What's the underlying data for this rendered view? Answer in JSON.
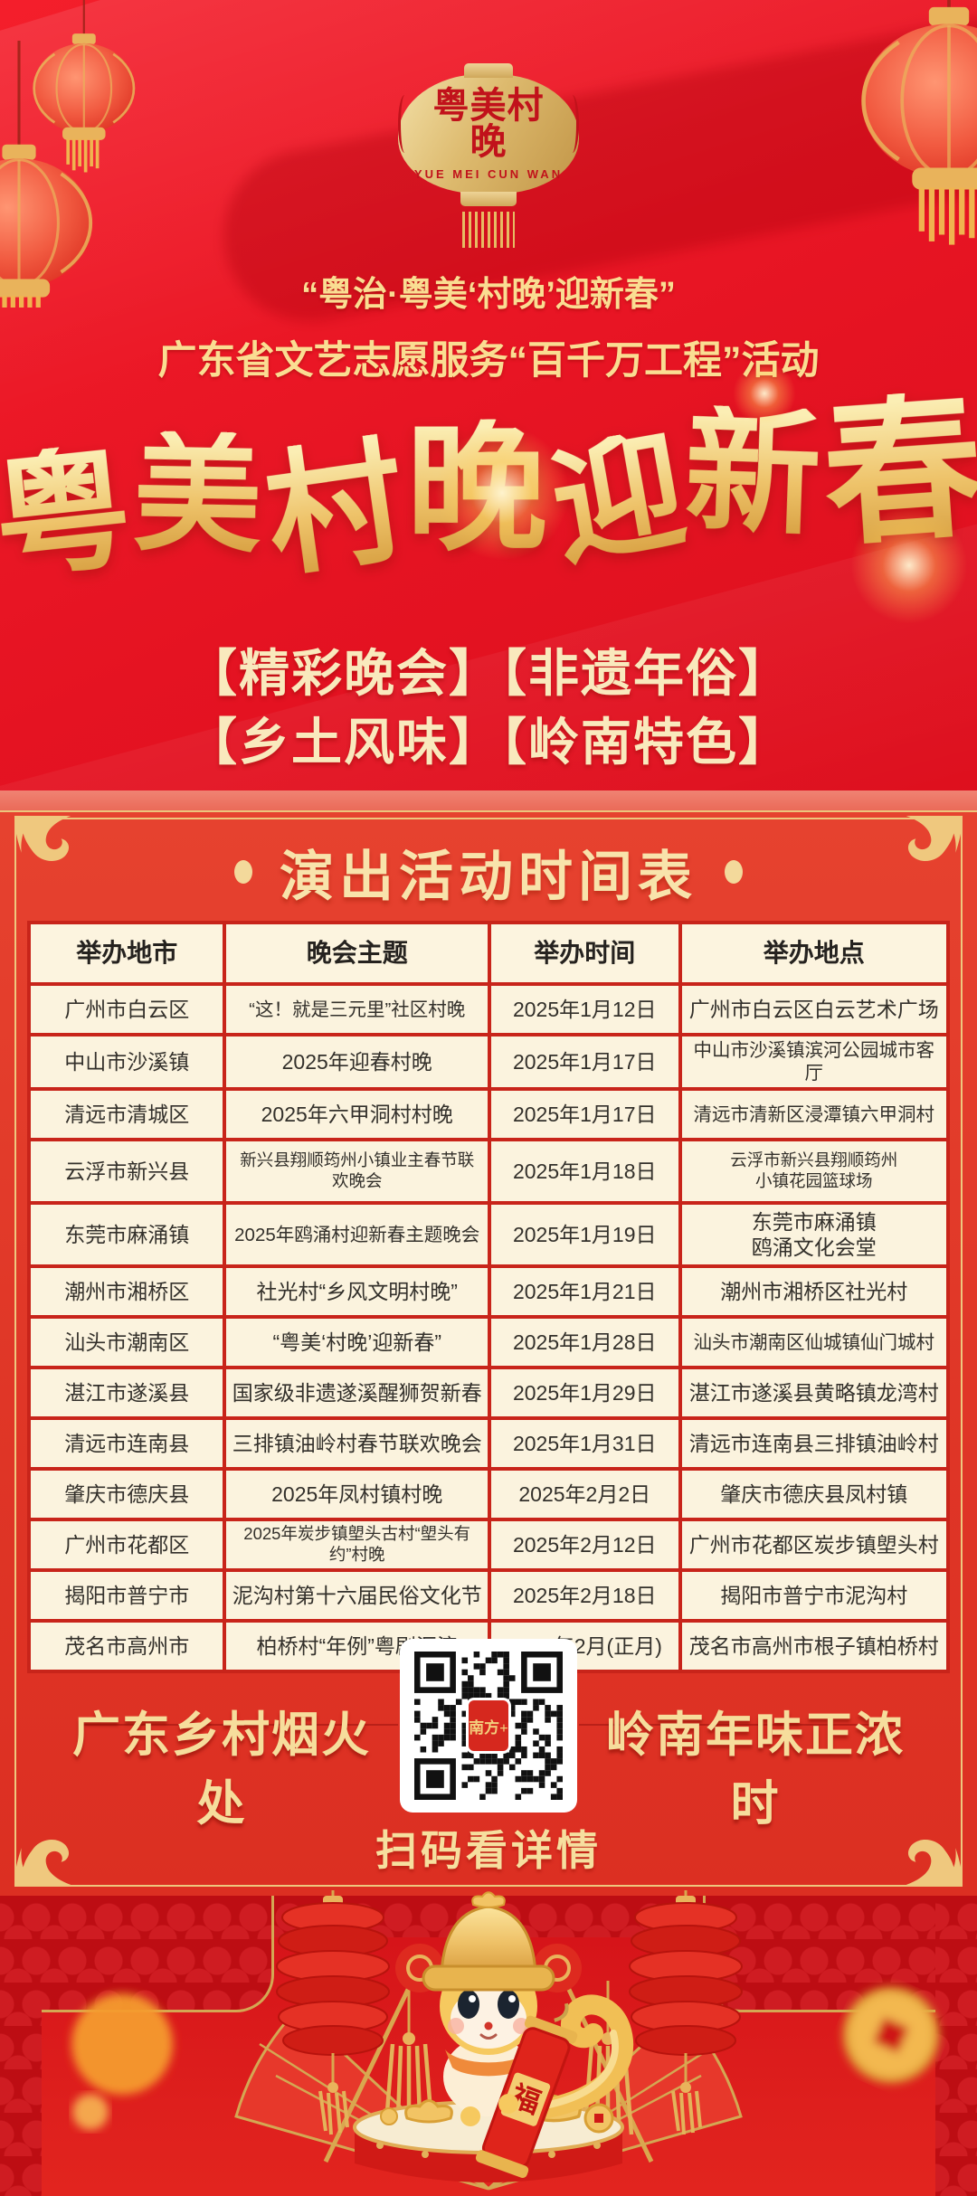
{
  "poster": {
    "logo": {
      "name": "粤美村晚",
      "latin": "YUE MEI CUN WAN"
    },
    "kicker_line1": "“粤治·粤美‘村晚’迎新春”",
    "kicker_line2": "广东省文艺志愿服务“百千万工程”活动",
    "main_title": "粤美村晚迎新春",
    "tags_line1": "【精彩晚会】【非遗年俗】",
    "tags_line2": "【乡土风味】【岭南特色】"
  },
  "schedule": {
    "decor_dot_left": "",
    "decor_dot_right": "",
    "title": "演出活动时间表",
    "columns": [
      "举办地市",
      "晚会主题",
      "举办时间",
      "举办地点"
    ],
    "rows": [
      {
        "city": "广州市白云区",
        "theme": "“这！就是三元里”社区村晚",
        "date": "2025年1月12日",
        "venue": "广州市白云区白云艺术广场"
      },
      {
        "city": "中山市沙溪镇",
        "theme": "2025年迎春村晚",
        "date": "2025年1月17日",
        "venue": "中山市沙溪镇滨河公园城市客厅"
      },
      {
        "city": "清远市清城区",
        "theme": "2025年六甲洞村村晚",
        "date": "2025年1月17日",
        "venue": "清远市清新区浸潭镇六甲洞村"
      },
      {
        "city": "云浮市新兴县",
        "theme": "新兴县翔顺筠州小镇业主春节联欢晚会",
        "date": "2025年1月18日",
        "venue": "云浮市新兴县翔顺筠州\n小镇花园篮球场"
      },
      {
        "city": "东莞市麻涌镇",
        "theme": "2025年鸥涌村迎新春主题晚会",
        "date": "2025年1月19日",
        "venue": "东莞市麻涌镇\n鸥涌文化会堂"
      },
      {
        "city": "潮州市湘桥区",
        "theme": "社光村“乡风文明村晚”",
        "date": "2025年1月21日",
        "venue": "潮州市湘桥区社光村"
      },
      {
        "city": "汕头市潮南区",
        "theme": "“粤美‘村晚’迎新春”",
        "date": "2025年1月28日",
        "venue": "汕头市潮南区仙城镇仙门城村"
      },
      {
        "city": "湛江市遂溪县",
        "theme": "国家级非遗遂溪醒狮贺新春",
        "date": "2025年1月29日",
        "venue": "湛江市遂溪县黄略镇龙湾村"
      },
      {
        "city": "清远市连南县",
        "theme": "三排镇油岭村春节联欢晚会",
        "date": "2025年1月31日",
        "venue": "清远市连南县三排镇油岭村"
      },
      {
        "city": "肇庆市德庆县",
        "theme": "2025年凤村镇村晚",
        "date": "2025年2月2日",
        "venue": "肇庆市德庆县凤村镇"
      },
      {
        "city": "广州市花都区",
        "theme": "2025年炭步镇塱头古村“塱头有约”村晚",
        "date": "2025年2月12日",
        "venue": "广州市花都区炭步镇塱头村"
      },
      {
        "city": "揭阳市普宁市",
        "theme": "泥沟村第十六届民俗文化节",
        "date": "2025年2月18日",
        "venue": "揭阳市普宁市泥沟村"
      },
      {
        "city": "茂名市高州市",
        "theme": "柏桥村“年例”粤剧汇演",
        "date": "2025年2月(正月)",
        "venue": "茂名市高州市根子镇柏桥村"
      }
    ]
  },
  "footer": {
    "slogan_left": "广东乡村烟火处",
    "slogan_right": "岭南年味正浓时",
    "qr_caption": "扫码看详情",
    "qr_logo": "南方+"
  },
  "decor": {
    "fu": "福"
  },
  "colors": {
    "bg_red": "#DA0D1B",
    "panel_red": "#E23D2B",
    "accent_gold": "#F2CE82",
    "cream_cell": "#FBF3DE",
    "table_border": "#C8241A",
    "title_gold": "#EEC36A"
  }
}
